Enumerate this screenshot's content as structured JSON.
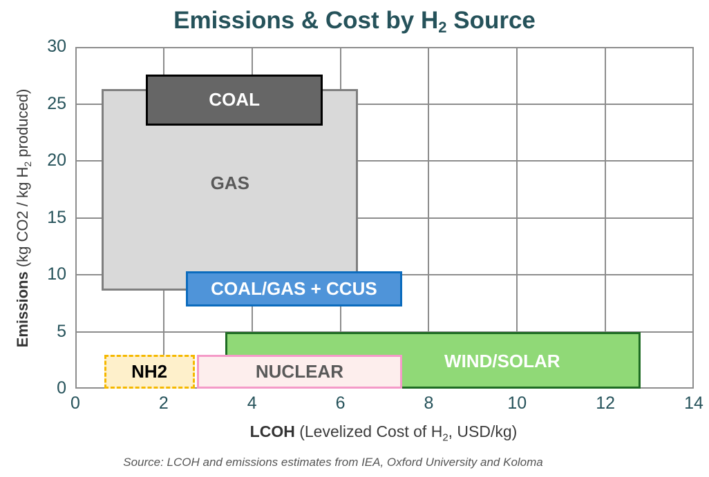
{
  "chart_data": {
    "type": "range-box",
    "title": "Emissions & Cost by H2 Source",
    "xlabel": "LCOH (Levelized Cost of H2, USD/kg)",
    "ylabel": "Emissions (kg CO2 / kg H2 produced)",
    "xlim": [
      0,
      14
    ],
    "ylim": [
      0,
      30
    ],
    "xticks": [
      0,
      2,
      4,
      6,
      8,
      10,
      12,
      14
    ],
    "yticks": [
      0,
      5,
      10,
      15,
      20,
      25,
      30
    ],
    "grid": true,
    "series": [
      {
        "name": "GAS",
        "x_range": [
          0.6,
          6.4
        ],
        "y_range": [
          8.6,
          26.3
        ],
        "fill": "#d9d9d9",
        "border": "#7f7f7f",
        "text_color": "#595959"
      },
      {
        "name": "COAL",
        "x_range": [
          1.6,
          5.6
        ],
        "y_range": [
          23.1,
          27.6
        ],
        "fill": "#666666",
        "border": "#000000",
        "text_color": "#ffffff"
      },
      {
        "name": "COAL/GAS + CCUS",
        "x_range": [
          2.5,
          7.4
        ],
        "y_range": [
          7.2,
          10.3
        ],
        "fill": "#4f94d9",
        "border": "#0b6bbd",
        "text_color": "#ffffff"
      },
      {
        "name": "WIND/SOLAR",
        "x_range": [
          3.4,
          12.8
        ],
        "y_range": [
          0,
          5
        ],
        "fill": "#90d977",
        "border": "#1e6b23",
        "text_color": "#ffffff"
      },
      {
        "name": "NUCLEAR",
        "x_range": [
          2.75,
          7.4
        ],
        "y_range": [
          0,
          3
        ],
        "fill": "#fdeeed",
        "border": "#f49ac8",
        "text_color": "#595959"
      },
      {
        "name": "NH2",
        "x_range": [
          0.65,
          2.7
        ],
        "y_range": [
          0,
          3
        ],
        "fill": "#fef0cb",
        "border": "#f5b800",
        "border_style": "dashed",
        "text_color": "#000000"
      }
    ],
    "source": "Source: LCOH and emissions estimates from IEA, Oxford University and Koloma"
  },
  "title": {
    "main": "Emissions & Cost by H",
    "sub": "2",
    "tail": " Source"
  },
  "ylabel": {
    "bold": "Emissions",
    "rest1": " (kg CO2 / kg H",
    "sub": "2",
    "rest2": " produced)"
  },
  "xlabel": {
    "bold": "LCOH",
    "rest1": " (Levelized Cost of H",
    "sub": "2",
    "rest2": ", USD/kg)"
  },
  "source": "Source: LCOH and emissions estimates from IEA, Oxford University and Koloma",
  "labels": {
    "gas": "GAS",
    "coal": "COAL",
    "ccus": "COAL/GAS + CCUS",
    "wind": "WIND/SOLAR",
    "nuclear": "NUCLEAR",
    "nh2": "NH2"
  }
}
